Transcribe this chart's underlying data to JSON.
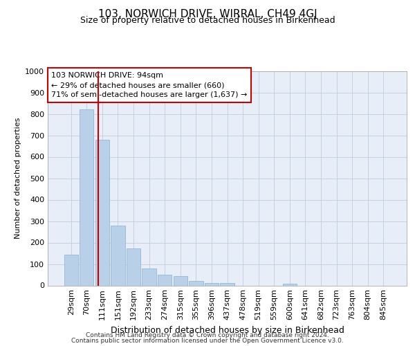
{
  "title": "103, NORWICH DRIVE, WIRRAL, CH49 4GJ",
  "subtitle": "Size of property relative to detached houses in Birkenhead",
  "xlabel": "Distribution of detached houses by size in Birkenhead",
  "ylabel": "Number of detached properties",
  "footer_line1": "Contains HM Land Registry data © Crown copyright and database right 2024.",
  "footer_line2": "Contains public sector information licensed under the Open Government Licence v3.0.",
  "bar_labels": [
    "29sqm",
    "70sqm",
    "111sqm",
    "151sqm",
    "192sqm",
    "233sqm",
    "274sqm",
    "315sqm",
    "355sqm",
    "396sqm",
    "437sqm",
    "478sqm",
    "519sqm",
    "559sqm",
    "600sqm",
    "641sqm",
    "682sqm",
    "723sqm",
    "763sqm",
    "804sqm",
    "845sqm"
  ],
  "bar_values": [
    145,
    820,
    680,
    278,
    172,
    78,
    50,
    42,
    20,
    12,
    10,
    0,
    0,
    0,
    8,
    0,
    0,
    0,
    0,
    0,
    0
  ],
  "bar_color": "#b8d0e8",
  "bar_edgecolor": "#90b8d8",
  "vline_x": 1.72,
  "vline_color": "#cc0000",
  "annotation_text": "103 NORWICH DRIVE: 94sqm\n← 29% of detached houses are smaller (660)\n71% of semi-detached houses are larger (1,637) →",
  "ylim": [
    0,
    1000
  ],
  "yticks": [
    0,
    100,
    200,
    300,
    400,
    500,
    600,
    700,
    800,
    900,
    1000
  ],
  "grid_color": "#c0cce0",
  "bg_color": "#e8eef8",
  "title_fontsize": 11,
  "subtitle_fontsize": 9,
  "xlabel_fontsize": 9,
  "ylabel_fontsize": 8,
  "tick_fontsize": 8,
  "footer_fontsize": 6.5
}
